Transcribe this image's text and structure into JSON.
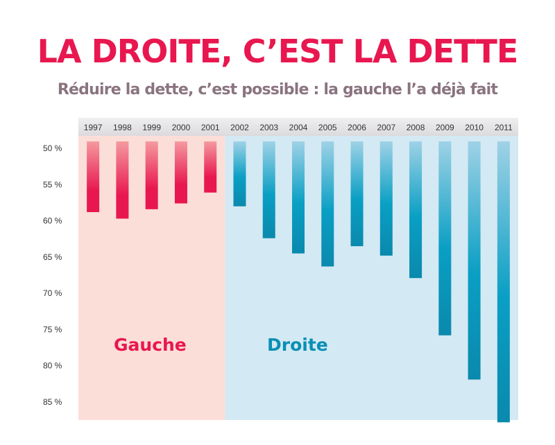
{
  "header": {
    "title": "LA DROITE, C’EST LA DETTE",
    "subtitle": "Réduire la dette, c’est possible : la gauche l’a déjà fait"
  },
  "chart_data": {
    "type": "bar",
    "categories": [
      "1997",
      "1998",
      "1999",
      "2000",
      "2001",
      "2002",
      "2003",
      "2004",
      "2005",
      "2006",
      "2007",
      "2008",
      "2009",
      "2010",
      "2011"
    ],
    "values": [
      58.8,
      59.7,
      58.4,
      57.6,
      56.1,
      58.0,
      62.4,
      64.5,
      66.3,
      63.5,
      64.8,
      67.9,
      75.8,
      81.9,
      87.8
    ],
    "base": 49,
    "ylim": [
      49,
      88
    ],
    "yticks": [
      50,
      55,
      60,
      65,
      70,
      75,
      80,
      85
    ],
    "ytick_labels": [
      "50 %",
      "55 %",
      "60 %",
      "65 %",
      "70 %",
      "75 %",
      "80 %",
      "85 %"
    ],
    "y_inverted": true,
    "regions": [
      {
        "label": "Gauche",
        "from": "1997",
        "to": "2001",
        "color": "#e8174f",
        "background": "#fcded8"
      },
      {
        "label": "Droite",
        "from": "2002",
        "to": "2011",
        "color": "#0a8fb5",
        "background": "#d3e9f3"
      }
    ]
  }
}
